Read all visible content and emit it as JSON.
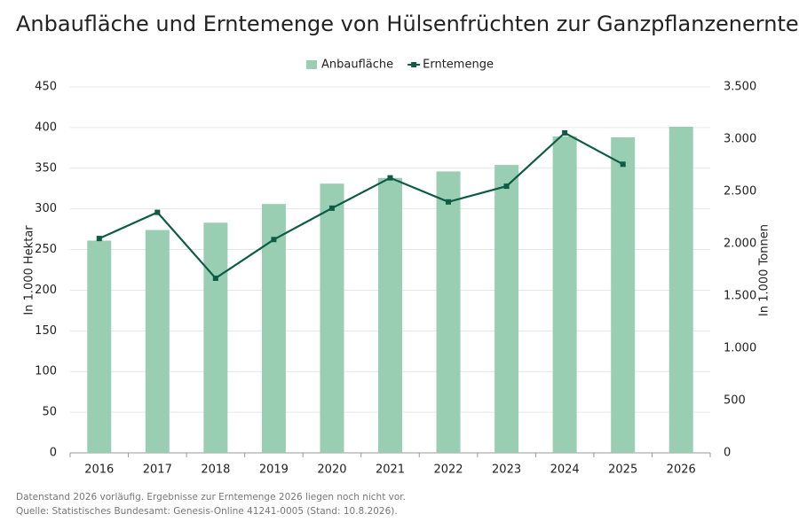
{
  "chart_data": {
    "type": "bar",
    "title": "Anbaufläche und Erntemenge von Hülsenfrüchten zur Ganzpflanzenernte",
    "categories": [
      "2016",
      "2017",
      "2018",
      "2019",
      "2020",
      "2021",
      "2022",
      "2023",
      "2024",
      "2025",
      "2026"
    ],
    "series": [
      {
        "name": "Anbaufläche",
        "type": "bar",
        "color": "#99ceb3",
        "values": [
          261,
          274,
          283,
          306,
          331,
          338,
          346,
          354,
          389,
          388,
          401
        ]
      },
      {
        "name": "Erntemenge",
        "type": "line",
        "axis": "y2",
        "color": "#0e5c45",
        "values": [
          2050,
          2300,
          1670,
          2040,
          2340,
          2630,
          2400,
          2550,
          3060,
          2760,
          null
        ]
      }
    ],
    "ylabel": "In 1.000 Hektar",
    "y2label": "In 1.000 Tonnen",
    "ylim": [
      0,
      450
    ],
    "yticks": [
      0,
      50,
      100,
      150,
      200,
      250,
      300,
      350,
      400,
      450
    ],
    "y2lim": [
      0,
      3500
    ],
    "y2ticks": [
      0,
      500,
      {
        "value": 1000,
        "label": "1.000"
      },
      {
        "value": 1500,
        "label": "1.500"
      },
      {
        "value": 2000,
        "label": "2.000"
      },
      {
        "value": 2500,
        "label": "2.500"
      },
      {
        "value": 3000,
        "label": "3.000"
      },
      {
        "value": 3500,
        "label": "3.500"
      }
    ],
    "grid": true,
    "legend": "top",
    "notes": [
      "Datenstand 2026 vorläufig. Ergebnisse zur Erntemenge 2026 liegen noch nicht vor.",
      "Quelle: Statistisches Bundesamt: Genesis-Online 41241-0005 (Stand: 10.8.2026)."
    ]
  }
}
